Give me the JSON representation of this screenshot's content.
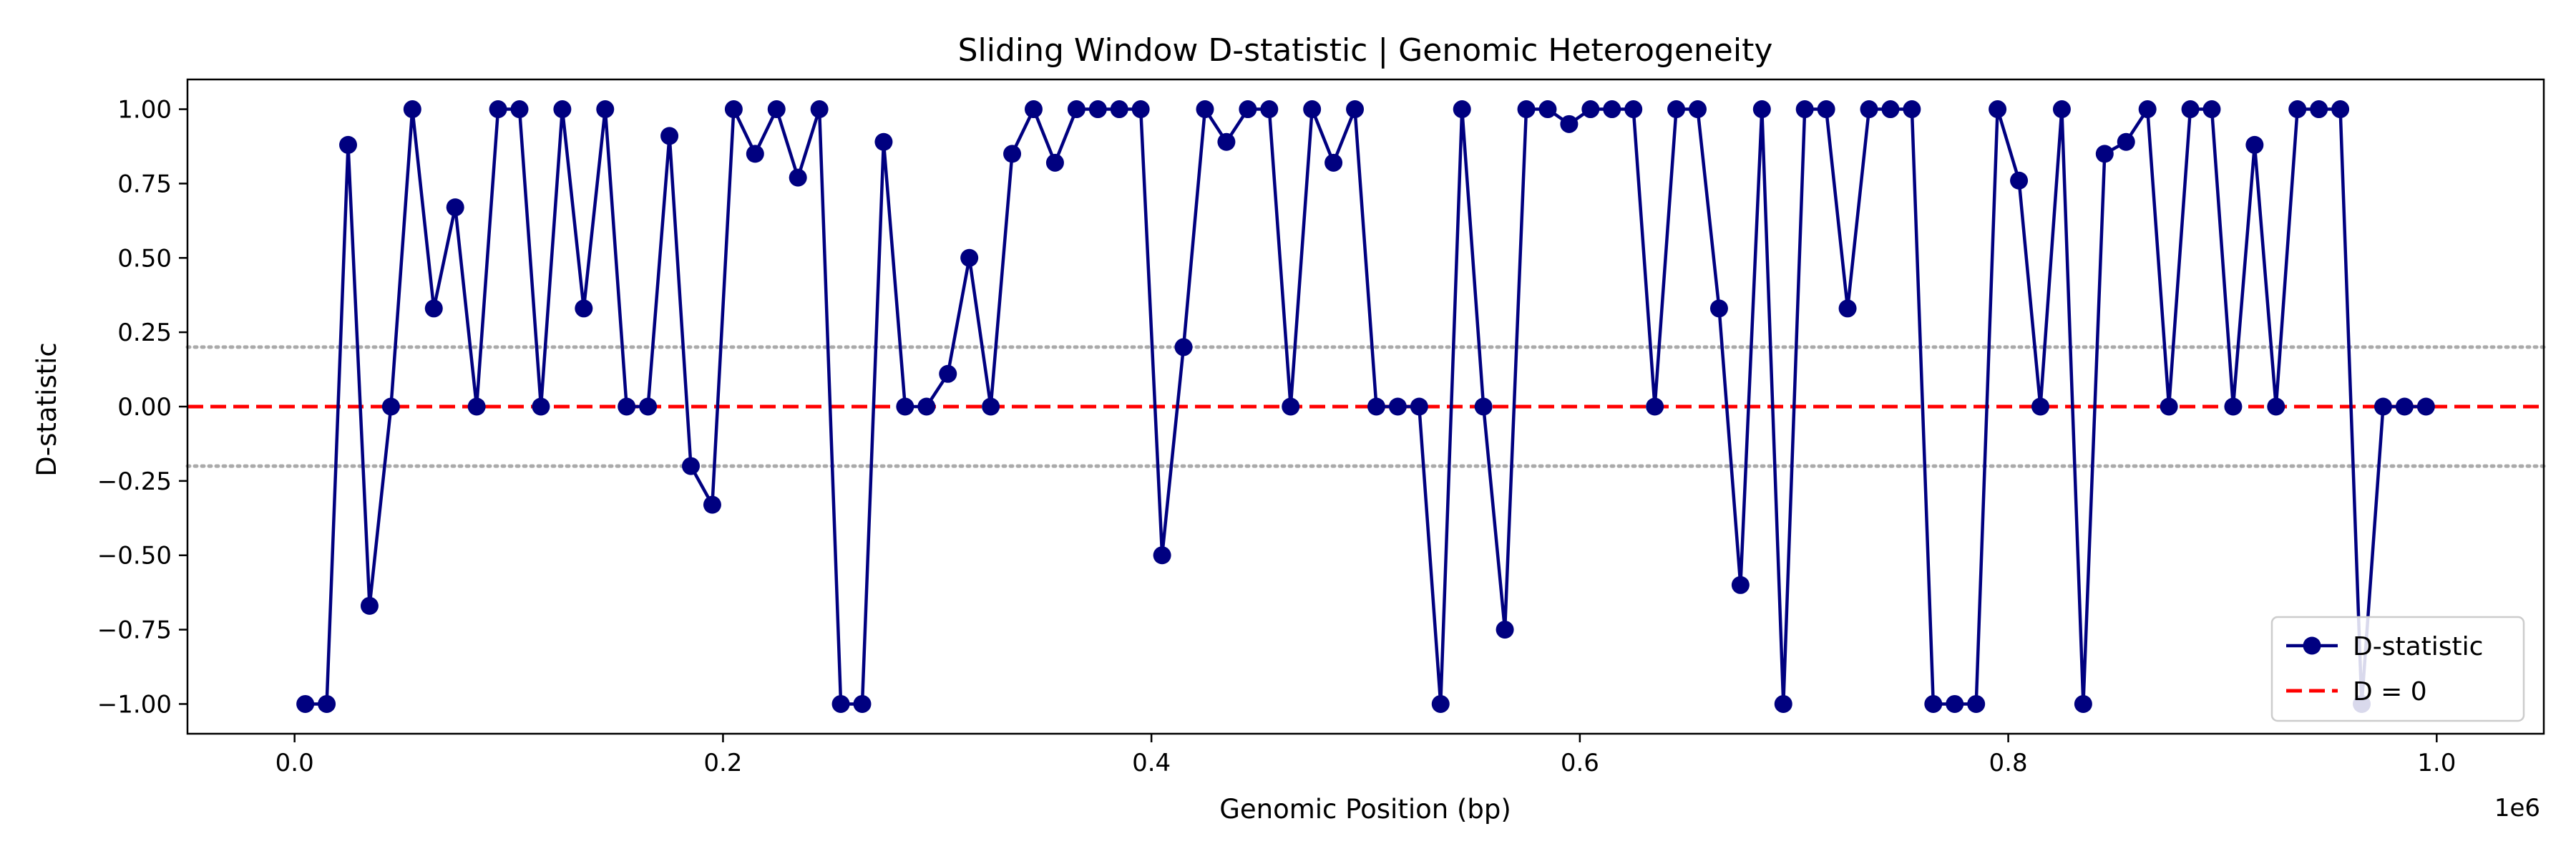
{
  "chart_data": {
    "type": "line",
    "title": "Sliding Window D-statistic | Genomic Heterogeneity",
    "xlabel": "Genomic Position (bp)",
    "ylabel": "D-statistic",
    "x_offset_label": "1e6",
    "xlim": [
      -50000,
      1050000
    ],
    "ylim": [
      -1.1,
      1.1
    ],
    "x_ticks": [
      0,
      200000,
      400000,
      600000,
      800000,
      1000000
    ],
    "x_tick_labels": [
      "0.0",
      "0.2",
      "0.4",
      "0.6",
      "0.8",
      "1.0"
    ],
    "y_ticks": [
      -1.0,
      -0.75,
      -0.5,
      -0.25,
      0.0,
      0.25,
      0.5,
      0.75,
      1.0
    ],
    "y_tick_labels": [
      "−1.00",
      "−0.75",
      "−0.50",
      "−0.25",
      "0.00",
      "0.25",
      "0.50",
      "0.75",
      "1.00"
    ],
    "grid": false,
    "legend_position": "lower-right",
    "colors": {
      "series": "#000080",
      "zero_line": "#ff0000",
      "threshold_lines": "#aaaaaa"
    },
    "reference_lines": [
      {
        "y": 0,
        "style": "dashed",
        "color": "#ff0000",
        "label": "D = 0"
      },
      {
        "y": 0.2,
        "style": "dotted",
        "color": "#aaaaaa"
      },
      {
        "y": -0.2,
        "style": "dotted",
        "color": "#aaaaaa"
      }
    ],
    "series": [
      {
        "name": "D-statistic",
        "x": [
          5000,
          15000,
          25000,
          35000,
          45000,
          55000,
          65000,
          75000,
          85000,
          95000,
          105000,
          115000,
          125000,
          135000,
          145000,
          155000,
          165000,
          175000,
          185000,
          195000,
          205000,
          215000,
          225000,
          235000,
          245000,
          255000,
          265000,
          275000,
          285000,
          295000,
          305000,
          315000,
          325000,
          335000,
          345000,
          355000,
          365000,
          375000,
          385000,
          395000,
          405000,
          415000,
          425000,
          435000,
          445000,
          455000,
          465000,
          475000,
          485000,
          495000,
          505000,
          515000,
          525000,
          535000,
          545000,
          555000,
          565000,
          575000,
          585000,
          595000,
          605000,
          615000,
          625000,
          635000,
          645000,
          655000,
          665000,
          675000,
          685000,
          695000,
          705000,
          715000,
          725000,
          735000,
          745000,
          755000,
          765000,
          775000,
          785000,
          795000,
          805000,
          815000,
          825000,
          835000,
          845000,
          855000,
          865000,
          875000,
          885000,
          895000,
          905000,
          915000,
          925000,
          935000,
          945000,
          955000,
          965000,
          975000,
          985000,
          995000
        ],
        "y": [
          -1.0,
          -1.0,
          0.88,
          -0.67,
          0.0,
          1.0,
          0.33,
          0.67,
          0.0,
          1.0,
          1.0,
          0.0,
          1.0,
          0.33,
          1.0,
          0.0,
          0.0,
          0.91,
          -0.2,
          -0.33,
          1.0,
          0.85,
          1.0,
          0.77,
          1.0,
          -1.0,
          -1.0,
          0.89,
          0.0,
          0.0,
          0.11,
          0.5,
          0.0,
          0.85,
          1.0,
          0.82,
          1.0,
          1.0,
          1.0,
          1.0,
          -0.5,
          0.2,
          1.0,
          0.89,
          1.0,
          1.0,
          0.0,
          1.0,
          0.82,
          1.0,
          0.0,
          0.0,
          0.0,
          -1.0,
          1.0,
          0.0,
          -0.75,
          1.0,
          1.0,
          0.95,
          1.0,
          1.0,
          1.0,
          0.0,
          1.0,
          1.0,
          0.33,
          -0.6,
          1.0,
          -1.0,
          1.0,
          1.0,
          0.33,
          1.0,
          1.0,
          1.0,
          -1.0,
          -1.0,
          -1.0,
          1.0,
          0.76,
          0.0,
          1.0,
          -1.0,
          0.85,
          0.89,
          1.0,
          0.0,
          1.0,
          1.0,
          0.0,
          0.88,
          0.0,
          1.0,
          1.0,
          1.0,
          -1.0,
          0.0,
          0.0,
          0.0
        ]
      }
    ]
  }
}
